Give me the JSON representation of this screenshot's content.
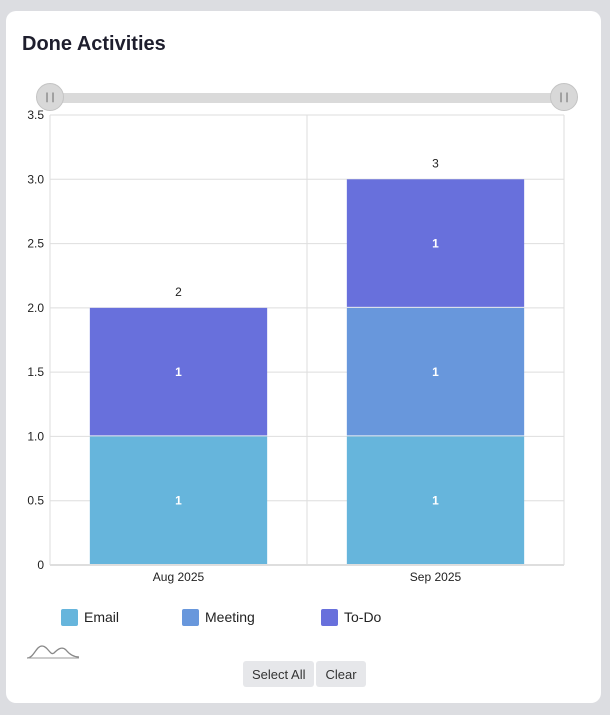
{
  "title": "Done Activities",
  "slider": {
    "handle_left_glyph": "||",
    "handle_right_glyph": "||"
  },
  "chart_data": {
    "type": "bar",
    "stacked": true,
    "categories": [
      "Aug 2025",
      "Sep 2025"
    ],
    "series": [
      {
        "name": "Email",
        "values": [
          1,
          1
        ],
        "color": "#66b5dc"
      },
      {
        "name": "Meeting",
        "values": [
          0,
          1
        ],
        "color": "#6897dc"
      },
      {
        "name": "To-Do",
        "values": [
          1,
          1
        ],
        "color": "#6870dc"
      }
    ],
    "totals": [
      2,
      3
    ],
    "ylim": [
      0,
      3.5
    ],
    "yticks": [
      "0",
      "0.5",
      "1.0",
      "1.5",
      "2.0",
      "2.5",
      "3.0",
      "3.5"
    ],
    "ytick_values": [
      0,
      0.5,
      1,
      1.5,
      2,
      2.5,
      3,
      3.5
    ],
    "grid": true,
    "legend": "bottom-left"
  },
  "buttons": {
    "select_all": "Select All",
    "clear": "Clear"
  },
  "icons": {
    "wave": "sparkline-icon"
  }
}
